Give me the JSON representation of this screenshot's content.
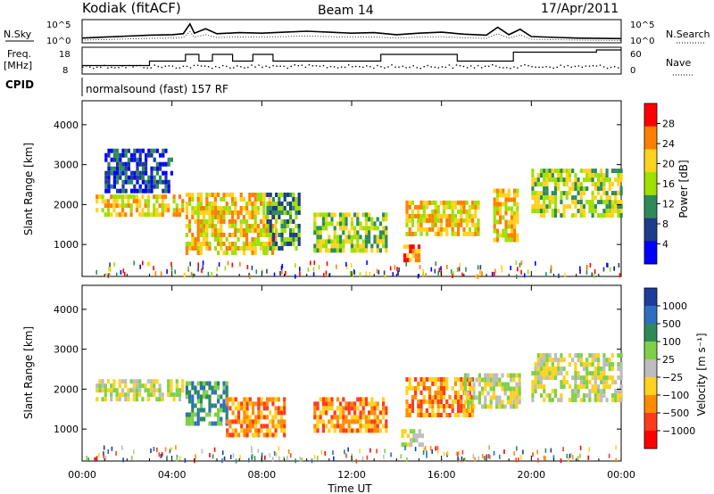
{
  "header": {
    "station": "Kodiak (fitACF)",
    "beam": "Beam 14",
    "date": "17/Apr/2011"
  },
  "chart_data": [
    {
      "type": "line",
      "panel": "noise",
      "left_label": "N.Sky",
      "right_label": "N.Search",
      "left_ticks": [
        "10^5",
        "10^0"
      ],
      "right_ticks": [
        "10^5",
        "10^0"
      ],
      "x_ticks": [
        "00:00",
        "04:00",
        "08:00",
        "12:00",
        "16:00",
        "20:00",
        "00:00"
      ],
      "series": [
        {
          "name": "N.Sky",
          "x": [
            0,
            1,
            2,
            3,
            4,
            4.5,
            4.8,
            5,
            5.5,
            6,
            7,
            8,
            9,
            10,
            11,
            12,
            13,
            14,
            15,
            16,
            17,
            18,
            18.5,
            19,
            19.5,
            20,
            22,
            24
          ],
          "y": [
            0.6,
            0.8,
            1.0,
            1.2,
            1.3,
            1.5,
            3.5,
            1.6,
            2.5,
            1.5,
            1.7,
            1.6,
            1.8,
            2.0,
            1.8,
            1.6,
            1.7,
            1.3,
            1.6,
            1.8,
            1.4,
            1.2,
            2.8,
            1.3,
            2.4,
            0.9,
            0.6,
            0.5
          ]
        }
      ]
    },
    {
      "type": "line",
      "panel": "frequency",
      "left_label_1": "Freq.",
      "left_label_2": "[MHz]",
      "left_ticks": [
        "18",
        "8"
      ],
      "right_ticks": [
        "60",
        "0"
      ],
      "right_label": "Nave",
      "cpid_label": "CPID",
      "program": "normalsound (fast) 157 RF",
      "series": [
        {
          "name": "Freq.",
          "x": [
            0,
            3,
            3,
            4.6,
            4.6,
            5.2,
            5.2,
            5.8,
            5.8,
            6.7,
            6.7,
            7.6,
            7.6,
            8.5,
            8.5,
            13.3,
            13.3,
            16.7,
            16.7,
            19.2,
            19.2,
            22.9,
            22.9,
            24
          ],
          "y": [
            11,
            11,
            13,
            13,
            16,
            16,
            13,
            13,
            16,
            16,
            13,
            13,
            16,
            16,
            13,
            13,
            16,
            16,
            13,
            13,
            17,
            17,
            18,
            18
          ]
        }
      ]
    },
    {
      "type": "heatmap",
      "panel": "power",
      "ylabel": "Slant Range [km]",
      "yticks": [
        1000,
        2000,
        3000,
        4000
      ],
      "ylim": [
        200,
        4600
      ],
      "colorbar_label": "Power [dB]",
      "colorbar_ticks": [
        "28",
        "24",
        "20",
        "16",
        "12",
        "8",
        "4"
      ],
      "colorbar_colors": [
        "#ff0000",
        "#ff7f00",
        "#ffd21e",
        "#9ee000",
        "#2e8b57",
        "#1e3c8c",
        "#0000ff"
      ],
      "echo_regions": [
        {
          "t0": 0.6,
          "t1": 4.5,
          "r0": 1700,
          "r1": 2250,
          "level": 2
        },
        {
          "t0": 1.0,
          "t1": 4.0,
          "r0": 2300,
          "r1": 3400,
          "level": 5
        },
        {
          "t0": 4.6,
          "t1": 8.6,
          "r0": 800,
          "r1": 2300,
          "level": 2
        },
        {
          "t0": 8.2,
          "t1": 9.6,
          "r0": 900,
          "r1": 2300,
          "level": 4
        },
        {
          "t0": 10.3,
          "t1": 13.5,
          "r0": 900,
          "r1": 1800,
          "level": 3
        },
        {
          "t0": 14.4,
          "t1": 17.6,
          "r0": 1300,
          "r1": 2100,
          "level": 2
        },
        {
          "t0": 14.3,
          "t1": 15.0,
          "r0": 650,
          "r1": 1000,
          "level": 1
        },
        {
          "t0": 18.3,
          "t1": 19.4,
          "r0": 1100,
          "r1": 2400,
          "level": 2
        },
        {
          "t0": 20.0,
          "t1": 24.0,
          "r0": 1700,
          "r1": 2900,
          "level": 3
        }
      ],
      "xlabel": "Time UT",
      "xticks": [
        "00:00",
        "04:00",
        "08:00",
        "12:00",
        "16:00",
        "20:00",
        "00:00"
      ]
    },
    {
      "type": "heatmap",
      "panel": "velocity",
      "ylabel": "Slant Range [km]",
      "yticks": [
        1000,
        2000,
        3000,
        4000
      ],
      "ylim": [
        200,
        4600
      ],
      "colorbar_label": "Velocity [m s⁻¹]",
      "colorbar_ticks": [
        "1000",
        "500",
        "100",
        "25",
        "−25",
        "−100",
        "−500",
        "−1000"
      ],
      "colorbar_colors": [
        "#1e3c9c",
        "#2e6ec0",
        "#2e8b57",
        "#7fd048",
        "#bdbdbd",
        "#ffd21e",
        "#ff8c00",
        "#ff3b1e",
        "#ff0000"
      ],
      "echo_regions": [
        {
          "t0": 0.6,
          "t1": 4.5,
          "r0": 1700,
          "r1": 2250,
          "level": 4
        },
        {
          "t0": 4.6,
          "t1": 6.5,
          "r0": 1100,
          "r1": 2200,
          "level": 2
        },
        {
          "t0": 6.4,
          "t1": 9.0,
          "r0": 800,
          "r1": 1800,
          "level": 6
        },
        {
          "t0": 10.3,
          "t1": 13.6,
          "r0": 950,
          "r1": 1800,
          "level": 6
        },
        {
          "t0": 14.4,
          "t1": 17.4,
          "r0": 1300,
          "r1": 2300,
          "level": 6
        },
        {
          "t0": 14.2,
          "t1": 15.2,
          "r0": 650,
          "r1": 1000,
          "level": 4
        },
        {
          "t0": 17.0,
          "t1": 19.5,
          "r0": 1600,
          "r1": 2400,
          "level": 4
        },
        {
          "t0": 20.0,
          "t1": 24.0,
          "r0": 1700,
          "r1": 2900,
          "level": 4
        }
      ],
      "xlabel": "Time UT",
      "xticks": [
        "00:00",
        "04:00",
        "08:00",
        "12:00",
        "16:00",
        "20:00",
        "00:00"
      ]
    }
  ]
}
